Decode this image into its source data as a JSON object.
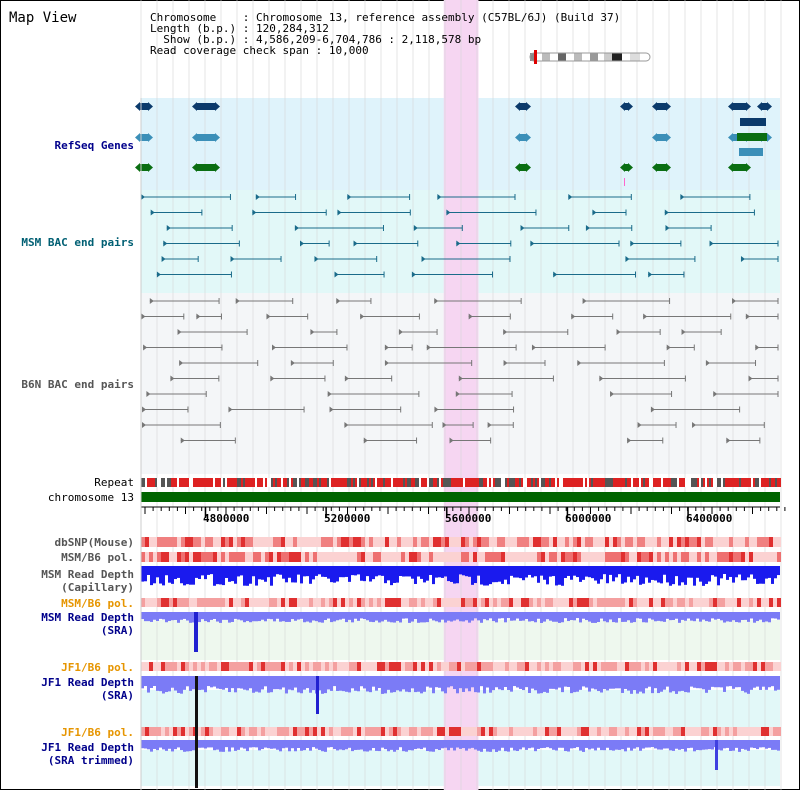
{
  "title": "Map View",
  "info": {
    "chromosome_label": "Chromosome",
    "chromosome_value": "Chromosome 13, reference assembly (C57BL/6J) (Build 37)",
    "length_label": "Length (b.p.)",
    "length_value": "120,284,312",
    "show_label": "Show (b.p.)",
    "show_value": "4,586,209-6,704,786 : 2,118,578 bp",
    "coverage_label": "Read coverage check span",
    "coverage_value": "10,000"
  },
  "tracks": {
    "refseq": "RefSeq Genes",
    "msm_bac": "MSM BAC end pairs",
    "b6n_bac": "B6N BAC end pairs",
    "repeat": "Repeat",
    "chromosome": "chromosome 13",
    "dbsnp": "dbSNP(Mouse)",
    "msm_b6_pol_1": "MSM/B6 pol.",
    "msm_read_depth_cap_1": "MSM Read Depth",
    "msm_read_depth_cap_2": "(Capillary)",
    "msm_b6_pol_2": "MSM/B6 pol.",
    "msm_read_depth_sra_1": "MSM Read Depth",
    "msm_read_depth_sra_2": "(SRA)",
    "jf1_b6_pol_1": "JF1/B6 pol.",
    "jf1_read_depth_sra_1": "JF1 Read Depth",
    "jf1_read_depth_sra_2": "(SRA)",
    "jf1_b6_pol_2": "JF1/B6 pol.",
    "jf1_read_depth_trim_1": "JF1 Read Depth",
    "jf1_read_depth_trim_2": "(SRA trimmed)"
  },
  "axis": {
    "ticks": [
      {
        "value": 4800000,
        "label": "4800000"
      },
      {
        "value": 5200000,
        "label": "5200000"
      },
      {
        "value": 5600000,
        "label": "5600000"
      },
      {
        "value": 6000000,
        "label": "6000000"
      },
      {
        "value": 6400000,
        "label": "6400000"
      }
    ],
    "range": [
      4586209,
      6704786
    ],
    "highlight": [
      5590000,
      5705000
    ]
  },
  "colors": {
    "refseq_bg": "#dff3fb",
    "msm_bg": "#e2f8f8",
    "b6n_bg": "#f4f6f8",
    "highlight": "#f6d6f2",
    "chromosome": "#006400",
    "repeat_red": "#dd2222",
    "depth_cap": "#1a1aee",
    "depth_sra": "#7b7bf6",
    "pol_pink": "#f4a0a0",
    "msm_text": "#005f73",
    "navy": "#00008b",
    "orange": "#e69500"
  }
}
